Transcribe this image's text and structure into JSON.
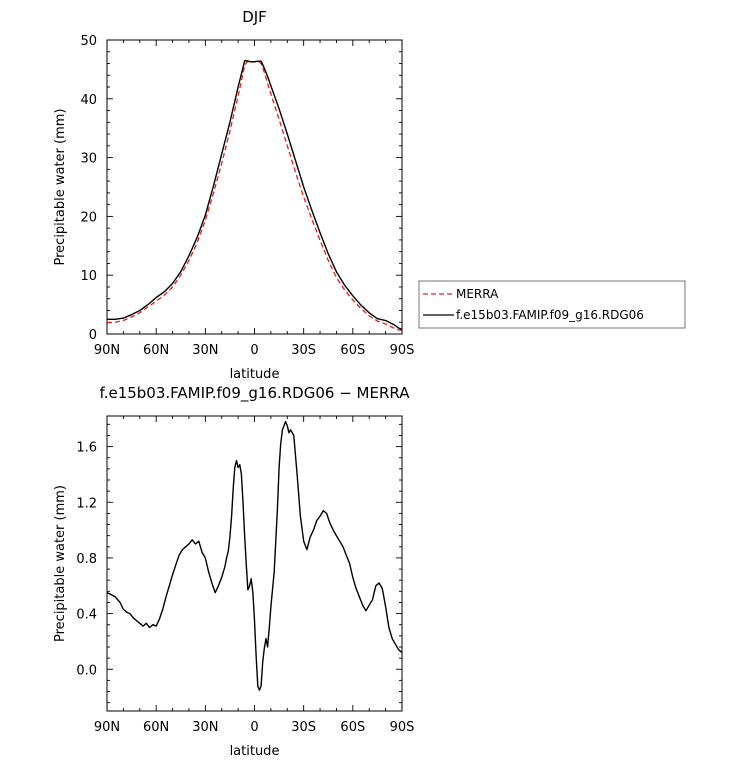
{
  "chart_data": [
    {
      "type": "line",
      "title": "DJF",
      "xlabel": "latitude",
      "ylabel": "Precipitable water (mm)",
      "xlim": [
        90,
        -90
      ],
      "ylim": [
        0,
        50
      ],
      "x_ticks": [
        90,
        60,
        30,
        0,
        -30,
        -60,
        -90
      ],
      "x_tick_labels": [
        "90N",
        "60N",
        "30N",
        "0",
        "30S",
        "60S",
        "90S"
      ],
      "y_ticks": [
        0,
        10,
        20,
        30,
        40,
        50
      ],
      "y_tick_labels": [
        "0",
        "10",
        "20",
        "30",
        "40",
        "50"
      ],
      "legend_position": "right",
      "series": [
        {
          "name": "MERRA",
          "color": "#e0201b",
          "dash": "dashed",
          "x": [
            90,
            85,
            80,
            75,
            70,
            65,
            60,
            55,
            50,
            45,
            40,
            35,
            30,
            25,
            20,
            15,
            10,
            8,
            6,
            4,
            2,
            0,
            -2,
            -4,
            -6,
            -8,
            -10,
            -15,
            -20,
            -25,
            -30,
            -35,
            -40,
            -45,
            -50,
            -55,
            -60,
            -65,
            -70,
            -75,
            -80,
            -85,
            -88,
            -90
          ],
          "y": [
            1.9,
            2.0,
            2.3,
            2.9,
            3.6,
            4.6,
            5.6,
            6.6,
            8.0,
            10.0,
            12.5,
            15.5,
            19.3,
            24.0,
            29.0,
            34.5,
            40.5,
            43.0,
            45.7,
            46.5,
            46.3,
            46.3,
            46.4,
            46.0,
            44.5,
            42.6,
            40.8,
            36.5,
            32.0,
            27.5,
            23.3,
            19.5,
            15.9,
            12.5,
            9.6,
            7.5,
            5.8,
            4.3,
            3.1,
            2.2,
            1.7,
            1.0,
            0.7,
            0.6
          ]
        },
        {
          "name": "f.e15b03.FAMIP.f09_g16.RDG06",
          "color": "#000000",
          "dash": "solid",
          "x": [
            90,
            85,
            80,
            75,
            70,
            65,
            60,
            55,
            50,
            45,
            40,
            35,
            30,
            25,
            20,
            15,
            10,
            8,
            6,
            4,
            2,
            0,
            -2,
            -4,
            -6,
            -8,
            -10,
            -15,
            -20,
            -25,
            -30,
            -35,
            -40,
            -45,
            -50,
            -55,
            -60,
            -65,
            -70,
            -75,
            -80,
            -85,
            -88,
            -90
          ],
          "y": [
            2.5,
            2.5,
            2.7,
            3.3,
            4.0,
            5.0,
            6.2,
            7.2,
            8.6,
            10.6,
            13.3,
            16.4,
            20.2,
            25.2,
            30.6,
            36.0,
            42.0,
            44.2,
            46.5,
            46.4,
            46.3,
            46.3,
            46.4,
            46.4,
            45.2,
            43.8,
            42.2,
            38.3,
            34.0,
            29.5,
            25.0,
            21.0,
            17.2,
            13.6,
            10.6,
            8.3,
            6.5,
            4.9,
            3.6,
            2.6,
            2.3,
            1.6,
            1.0,
            0.8
          ]
        }
      ]
    },
    {
      "type": "line",
      "title": "f.e15b03.FAMIP.f09_g16.RDG06 − MERRA",
      "xlabel": "latitude",
      "ylabel": "Precipitable water (mm)",
      "xlim": [
        90,
        -90
      ],
      "ylim": [
        -0.3,
        1.82
      ],
      "x_ticks": [
        90,
        60,
        30,
        0,
        -30,
        -60,
        -90
      ],
      "x_tick_labels": [
        "90N",
        "60N",
        "30N",
        "0",
        "30S",
        "60S",
        "90S"
      ],
      "y_ticks": [
        0.0,
        0.4,
        0.8,
        1.2,
        1.6
      ],
      "y_tick_labels": [
        "0.0",
        "0.4",
        "0.8",
        "1.2",
        "1.6"
      ],
      "series": [
        {
          "color": "#000000",
          "dash": "solid",
          "x": [
            90,
            88,
            85,
            82,
            80,
            78,
            76,
            74,
            72,
            70,
            68,
            66,
            64,
            62,
            60,
            58,
            56,
            54,
            52,
            50,
            48,
            46,
            44,
            42,
            40,
            38,
            36,
            34,
            32,
            30,
            28,
            26,
            24,
            22,
            20,
            18,
            17,
            16,
            15,
            14,
            13,
            12,
            11,
            10,
            9,
            8,
            7,
            6,
            5,
            4,
            3,
            2,
            1,
            0,
            -1,
            -2,
            -3,
            -4,
            -5,
            -6,
            -7,
            -8,
            -9,
            -10,
            -12,
            -14,
            -15,
            -16,
            -17,
            -18,
            -19,
            -20,
            -21,
            -22,
            -23,
            -24,
            -26,
            -28,
            -30,
            -32,
            -34,
            -36,
            -38,
            -40,
            -42,
            -44,
            -46,
            -48,
            -50,
            -52,
            -54,
            -56,
            -58,
            -60,
            -62,
            -64,
            -66,
            -68,
            -70,
            -72,
            -74,
            -76,
            -78,
            -80,
            -82,
            -84,
            -86,
            -88,
            -90
          ],
          "y": [
            0.55,
            0.54,
            0.52,
            0.48,
            0.43,
            0.41,
            0.4,
            0.37,
            0.35,
            0.33,
            0.31,
            0.33,
            0.3,
            0.32,
            0.31,
            0.36,
            0.43,
            0.52,
            0.6,
            0.68,
            0.75,
            0.82,
            0.86,
            0.88,
            0.9,
            0.93,
            0.9,
            0.92,
            0.84,
            0.8,
            0.7,
            0.62,
            0.55,
            0.6,
            0.66,
            0.74,
            0.8,
            0.85,
            0.95,
            1.1,
            1.3,
            1.45,
            1.5,
            1.45,
            1.47,
            1.4,
            1.2,
            0.95,
            0.75,
            0.57,
            0.6,
            0.65,
            0.55,
            0.35,
            0.1,
            -0.12,
            -0.15,
            -0.12,
            0.05,
            0.15,
            0.22,
            0.16,
            0.3,
            0.45,
            0.7,
            1.15,
            1.45,
            1.62,
            1.72,
            1.75,
            1.78,
            1.75,
            1.7,
            1.72,
            1.7,
            1.68,
            1.4,
            1.1,
            0.92,
            0.86,
            0.95,
            1.0,
            1.07,
            1.1,
            1.14,
            1.12,
            1.05,
            1.0,
            0.96,
            0.92,
            0.88,
            0.82,
            0.76,
            0.66,
            0.58,
            0.52,
            0.46,
            0.42,
            0.46,
            0.5,
            0.6,
            0.62,
            0.58,
            0.45,
            0.3,
            0.22,
            0.18,
            0.14,
            0.12
          ]
        }
      ]
    }
  ]
}
